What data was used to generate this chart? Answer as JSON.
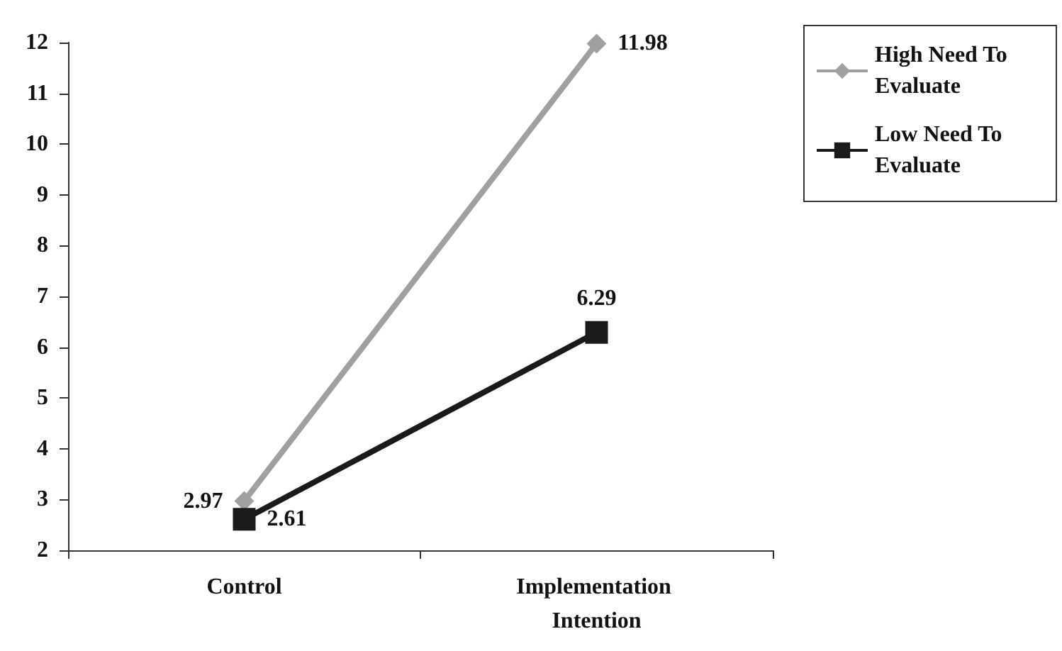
{
  "chart_data": {
    "type": "line",
    "categories": [
      "Control",
      "Implementation Intention"
    ],
    "series": [
      {
        "name": "High Need To Evaluate",
        "color": "#a0a0a0",
        "values": [
          2.97,
          11.98
        ],
        "marker": "diamond"
      },
      {
        "name": "Low Need To Evaluate",
        "color": "#1a1a1a",
        "values": [
          2.61,
          6.29
        ],
        "marker": "square"
      }
    ],
    "ylim": [
      2,
      12
    ],
    "yticks": [
      2,
      3,
      4,
      5,
      6,
      7,
      8,
      9,
      10,
      11,
      12
    ],
    "grid": false,
    "legend": "top right",
    "data_labels": true,
    "line_style": "solid"
  }
}
